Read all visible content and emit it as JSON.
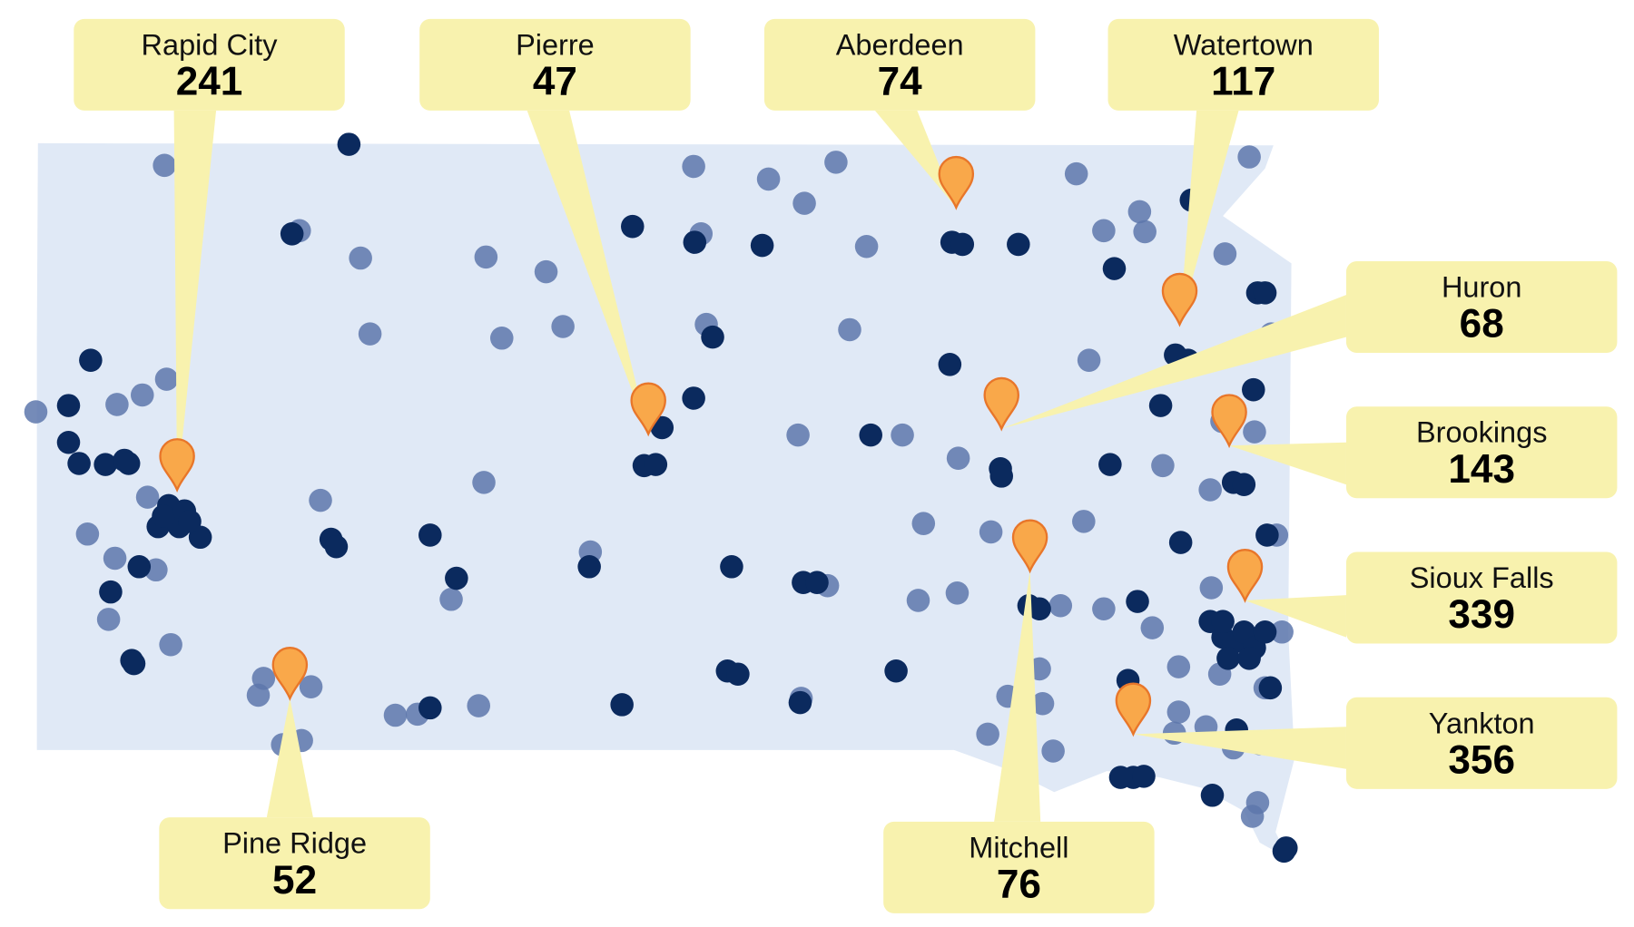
{
  "callouts": [
    {
      "city": "Rapid City",
      "count": 241
    },
    {
      "city": "Pierre",
      "count": 47
    },
    {
      "city": "Aberdeen",
      "count": 74
    },
    {
      "city": "Watertown",
      "count": 117
    },
    {
      "city": "Huron",
      "count": 68
    },
    {
      "city": "Brookings",
      "count": 143
    },
    {
      "city": "Sioux Falls",
      "count": 339
    },
    {
      "city": "Yankton",
      "count": 356
    },
    {
      "city": "Pine Ridge",
      "count": 52
    },
    {
      "city": "Mitchell",
      "count": 76
    }
  ]
}
